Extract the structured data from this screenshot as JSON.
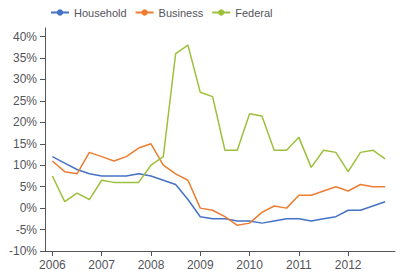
{
  "chart_data": {
    "type": "line",
    "x": [
      2006.0,
      2006.25,
      2006.5,
      2006.75,
      2007.0,
      2007.25,
      2007.5,
      2007.75,
      2008.0,
      2008.25,
      2008.5,
      2008.75,
      2009.0,
      2009.25,
      2009.5,
      2009.75,
      2010.0,
      2010.25,
      2010.5,
      2010.75,
      2011.0,
      2011.25,
      2011.5,
      2011.75,
      2012.0,
      2012.25,
      2012.5,
      2012.75
    ],
    "series": [
      {
        "name": "Household",
        "color": "#4472C4",
        "values": [
          0.12,
          0.105,
          0.09,
          0.08,
          0.075,
          0.075,
          0.075,
          0.08,
          0.075,
          0.065,
          0.055,
          0.02,
          -0.02,
          -0.025,
          -0.025,
          -0.03,
          -0.03,
          -0.035,
          -0.03,
          -0.025,
          -0.025,
          -0.03,
          -0.025,
          -0.02,
          -0.005,
          -0.005,
          0.005,
          0.015
        ]
      },
      {
        "name": "Business",
        "color": "#ED7D31",
        "values": [
          0.11,
          0.085,
          0.08,
          0.13,
          0.12,
          0.11,
          0.12,
          0.14,
          0.15,
          0.1,
          0.08,
          0.065,
          0.0,
          -0.005,
          -0.02,
          -0.04,
          -0.035,
          -0.01,
          0.005,
          0.0,
          0.03,
          0.03,
          0.04,
          0.05,
          0.04,
          0.055,
          0.05,
          0.05
        ]
      },
      {
        "name": "Federal",
        "color": "#9DC03C",
        "values": [
          0.075,
          0.015,
          0.035,
          0.02,
          0.065,
          0.06,
          0.06,
          0.06,
          0.1,
          0.12,
          0.36,
          0.38,
          0.27,
          0.26,
          0.135,
          0.135,
          0.22,
          0.215,
          0.135,
          0.135,
          0.165,
          0.095,
          0.135,
          0.13,
          0.085,
          0.13,
          0.135,
          0.115
        ]
      }
    ],
    "xlim": [
      2005.85,
      2012.95
    ],
    "xticks": [
      2006,
      2007,
      2008,
      2009,
      2010,
      2011,
      2012
    ],
    "ylim": [
      -0.1,
      0.42
    ],
    "yticks": [
      {
        "value": -0.1,
        "label": "-10%"
      },
      {
        "value": -0.05,
        "label": "-5%"
      },
      {
        "value": 0.0,
        "label": "0%"
      },
      {
        "value": 0.05,
        "label": "5%"
      },
      {
        "value": 0.1,
        "label": "10%"
      },
      {
        "value": 0.15,
        "label": "15%"
      },
      {
        "value": 0.2,
        "label": "20%"
      },
      {
        "value": 0.25,
        "label": "25%"
      },
      {
        "value": 0.3,
        "label": "30%"
      },
      {
        "value": 0.35,
        "label": "35%"
      },
      {
        "value": 0.4,
        "label": "40%"
      }
    ],
    "grid": false,
    "legend": "upper left"
  }
}
